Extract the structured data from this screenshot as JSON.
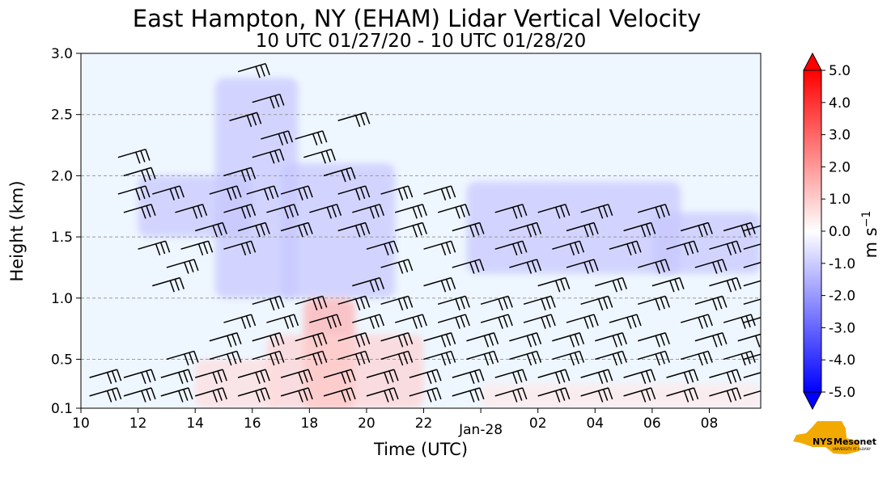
{
  "chart_data": {
    "type": "heatmap",
    "title": "East Hampton, NY (EHAM) Lidar Vertical Velocity",
    "subtitle": "10 UTC 01/27/20 - 10 UTC 01/28/20",
    "xlabel": "Time (UTC)",
    "ylabel": "Height (km)",
    "x_ticks": [
      "10",
      "12",
      "14",
      "16",
      "18",
      "20",
      "22",
      "Jan-28",
      "02",
      "04",
      "06",
      "08"
    ],
    "x_range_hours": [
      10,
      33.8
    ],
    "y_ticks": [
      0.1,
      0.5,
      1.0,
      1.5,
      2.0,
      2.5,
      3.0
    ],
    "y_tick_labels": [
      "0.1",
      "0.5",
      "1.0",
      "1.5",
      "2.0",
      "2.5",
      "3.0"
    ],
    "ylim": [
      0.1,
      3.0
    ],
    "grid": "horizontal dashed",
    "colorbar": {
      "label": "m s",
      "label_exponent": "−1",
      "range": [
        -5.0,
        5.0
      ],
      "ticks": [
        5.0,
        4.0,
        3.0,
        2.0,
        1.0,
        0.0,
        -1.0,
        -2.0,
        -3.0,
        -4.0,
        -5.0
      ],
      "tick_labels": [
        "5.0",
        "4.0",
        "3.0",
        "2.0",
        "1.0",
        "0.0",
        "-1.0",
        "-2.0",
        "-3.0",
        "-4.0",
        "-5.0"
      ],
      "colors": {
        "max": "#ff0000",
        "zero": "#ffffff",
        "min": "#0000ff"
      }
    },
    "background_color": "#eef6ff",
    "regions": [
      {
        "kind": "downdraft",
        "value": -0.5,
        "x": [
          14.7,
          17.6
        ],
        "y": [
          1.0,
          2.8
        ]
      },
      {
        "kind": "downdraft",
        "value": -0.5,
        "x": [
          17.0,
          21.0
        ],
        "y": [
          1.0,
          2.1
        ]
      },
      {
        "kind": "downdraft",
        "value": -0.5,
        "x": [
          12.0,
          16.0
        ],
        "y": [
          1.5,
          2.0
        ]
      },
      {
        "kind": "downdraft",
        "value": -0.5,
        "x": [
          23.5,
          31.0
        ],
        "y": [
          1.2,
          1.95
        ]
      },
      {
        "kind": "downdraft",
        "value": -0.5,
        "x": [
          30.0,
          33.8
        ],
        "y": [
          1.2,
          1.7
        ]
      },
      {
        "kind": "updraft",
        "value": 0.7,
        "x": [
          17.8,
          19.6
        ],
        "y": [
          0.1,
          1.0
        ]
      },
      {
        "kind": "updraft",
        "value": 0.4,
        "x": [
          16.5,
          22.0
        ],
        "y": [
          0.1,
          0.7
        ]
      },
      {
        "kind": "updraft",
        "value": 0.3,
        "x": [
          14.0,
          17.0
        ],
        "y": [
          0.1,
          0.5
        ]
      },
      {
        "kind": "updraft",
        "value": 0.2,
        "x": [
          24.0,
          33.8
        ],
        "y": [
          0.1,
          0.3
        ]
      }
    ],
    "wind_barbs": {
      "color": "#000000",
      "rows": [
        {
          "y": 2.85,
          "x": [
            15.5
          ]
        },
        {
          "y": 2.6,
          "x": [
            16.0
          ]
        },
        {
          "y": 2.45,
          "x": [
            15.2,
            19.0
          ]
        },
        {
          "y": 2.3,
          "x": [
            16.3,
            17.5
          ]
        },
        {
          "y": 2.15,
          "x": [
            11.3,
            16.0,
            17.8
          ]
        },
        {
          "y": 2.0,
          "x": [
            11.5,
            15.0,
            18.5
          ]
        },
        {
          "y": 1.85,
          "x": [
            11.3,
            12.5,
            14.5,
            15.8,
            17.0,
            19.0,
            20.5,
            22.0
          ]
        },
        {
          "y": 1.7,
          "x": [
            11.5,
            13.3,
            15.0,
            16.5,
            18.0,
            19.5,
            21.0,
            22.5,
            24.5,
            26.0,
            27.5,
            29.5
          ]
        },
        {
          "y": 1.55,
          "x": [
            14.0,
            15.5,
            17.0,
            19.0,
            21.0,
            23.0,
            25.0,
            27.0,
            29.0,
            31.0,
            32.5,
            33.2
          ]
        },
        {
          "y": 1.4,
          "x": [
            12.0,
            13.5,
            15.0,
            20.0,
            22.0,
            24.5,
            26.5,
            28.5,
            30.5,
            32.0,
            33.2
          ]
        },
        {
          "y": 1.25,
          "x": [
            13.0,
            20.5,
            23.0,
            25.0,
            27.0,
            29.5,
            31.5,
            33.2
          ]
        },
        {
          "y": 1.1,
          "x": [
            12.5,
            19.5,
            22.0,
            26.0,
            28.0,
            30.0,
            32.0,
            33.2
          ]
        },
        {
          "y": 0.95,
          "x": [
            16.0,
            17.5,
            19.0,
            20.5,
            22.5,
            24.0,
            25.5,
            27.5,
            29.5,
            31.5,
            33.2
          ]
        },
        {
          "y": 0.8,
          "x": [
            15.0,
            16.5,
            18.0,
            19.5,
            21.0,
            22.5,
            24.0,
            25.5,
            27.0,
            28.5,
            31.0,
            32.5,
            33.2
          ]
        },
        {
          "y": 0.65,
          "x": [
            14.5,
            16.0,
            17.5,
            19.0,
            20.5,
            22.0,
            23.5,
            25.0,
            26.5,
            28.0,
            29.5,
            31.5,
            33.0
          ]
        },
        {
          "y": 0.5,
          "x": [
            13.0,
            14.5,
            16.0,
            17.5,
            19.0,
            20.5,
            22.0,
            23.5,
            25.0,
            26.5,
            28.0,
            29.5,
            31.0,
            32.5,
            33.2
          ]
        },
        {
          "y": 0.35,
          "x": [
            10.3,
            11.5,
            12.8,
            14.0,
            15.5,
            17.0,
            18.5,
            20.0,
            21.5,
            23.0,
            24.5,
            26.0,
            27.5,
            29.0,
            30.5,
            32.0,
            33.2
          ]
        },
        {
          "y": 0.2,
          "x": [
            10.3,
            11.5,
            12.8,
            14.0,
            15.5,
            17.0,
            18.5,
            20.0,
            21.5,
            23.0,
            24.5,
            26.0,
            27.5,
            29.0,
            30.5,
            32.0,
            33.2
          ]
        }
      ]
    }
  },
  "logo": {
    "text": "NYS Mesonet",
    "subtext": "UNIVERSITY AT ALBANY",
    "colors": {
      "state": "#f2a900",
      "nys": "#ffffff",
      "mesonet": "#46166b"
    }
  }
}
